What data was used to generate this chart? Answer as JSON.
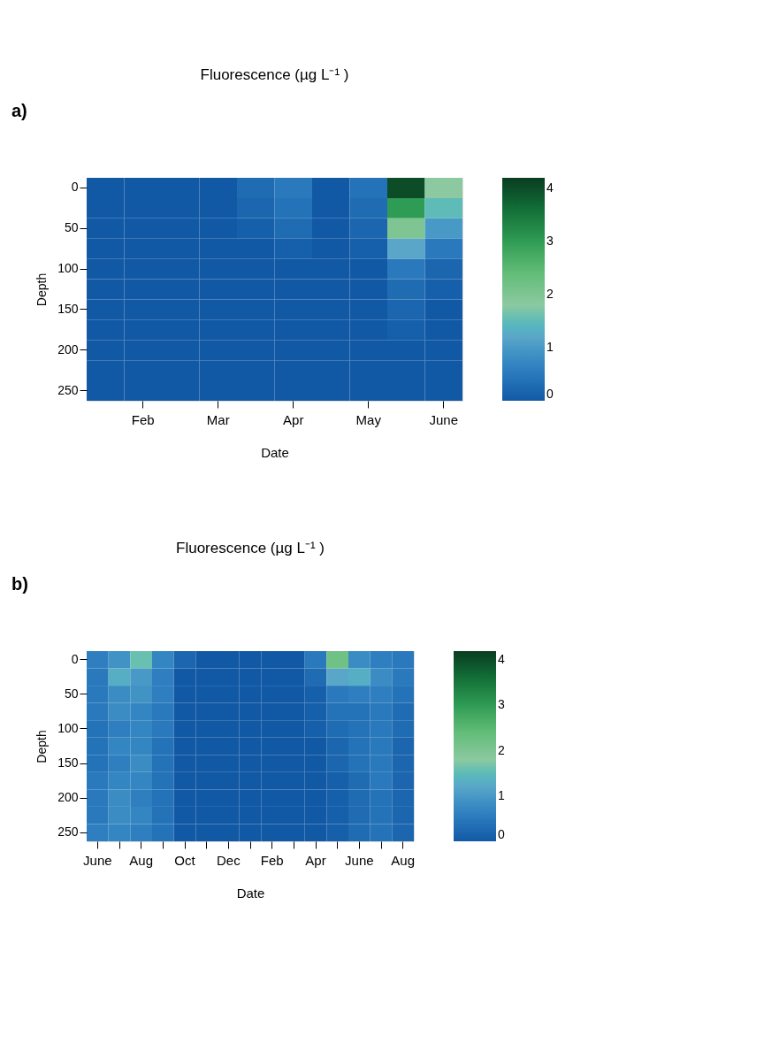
{
  "chart_data": [
    {
      "type": "heatmap",
      "title": "Fluorescence (µg L⁻¹ )",
      "annotations": [
        "a)"
      ],
      "xlabel": "Date",
      "ylabel": "Depth",
      "categories": [
        null,
        "Feb",
        null,
        "Mar",
        null,
        "Apr",
        null,
        "May",
        null,
        "June"
      ],
      "y_categories": [
        "0",
        null,
        "50",
        null,
        "100",
        null,
        "150",
        null,
        "200",
        null,
        "250"
      ],
      "cells": [
        [
          0,
          0,
          0,
          0,
          0.3,
          0.5,
          0,
          0.4,
          4.0,
          1.8
        ],
        [
          0,
          0,
          0,
          0,
          0.2,
          0.4,
          0,
          0.3,
          3.0,
          1.5
        ],
        [
          0,
          0,
          0,
          0,
          0.1,
          0.3,
          0,
          0.2,
          2.0,
          1.0
        ],
        [
          0,
          0,
          0,
          0,
          0,
          0.1,
          0,
          0.1,
          1.2,
          0.5
        ],
        [
          0,
          0,
          0,
          0,
          0,
          0,
          0,
          0,
          0.5,
          0.2
        ],
        [
          0,
          0,
          0,
          0,
          0,
          0,
          0,
          0,
          0.3,
          0.1
        ],
        [
          0,
          0,
          0,
          0,
          0,
          0,
          0,
          0,
          0.2,
          0
        ],
        [
          0,
          0,
          0,
          0,
          0,
          0,
          0,
          0,
          0.1,
          0
        ],
        [
          0,
          0,
          0,
          0,
          0,
          0,
          0,
          0,
          0,
          0
        ],
        [
          0,
          0,
          0,
          0,
          0,
          0,
          0,
          0,
          0,
          0
        ],
        [
          0,
          0,
          0,
          0,
          0,
          0,
          0,
          0,
          0,
          0
        ]
      ],
      "clim": [
        0,
        4.2
      ],
      "cticks": [
        0,
        1,
        2,
        3,
        4
      ]
    },
    {
      "type": "heatmap",
      "title": "Fluorescence (µg L⁻¹ )",
      "annotations": [
        "b)"
      ],
      "xlabel": "Date",
      "ylabel": "Depth",
      "categories": [
        "June",
        null,
        "Aug",
        null,
        "Oct",
        null,
        "Dec",
        null,
        "Feb",
        null,
        "Apr",
        null,
        "June",
        null,
        "Aug"
      ],
      "y_categories": [
        "0",
        null,
        "50",
        null,
        "100",
        null,
        "150",
        null,
        "200",
        null,
        "250"
      ],
      "cells": [
        [
          0.6,
          0.9,
          1.6,
          0.7,
          0.2,
          0,
          0,
          0,
          0,
          0,
          0.5,
          2.2,
          0.8,
          0.6,
          0.5
        ],
        [
          0.5,
          1.3,
          1.0,
          0.6,
          0,
          0,
          0,
          0,
          0,
          0,
          0.3,
          1.2,
          1.3,
          0.8,
          0.5
        ],
        [
          0.5,
          0.8,
          0.9,
          0.6,
          0,
          0,
          0,
          0,
          0,
          0,
          0.1,
          0.5,
          0.6,
          0.6,
          0.4
        ],
        [
          0.5,
          0.8,
          0.7,
          0.5,
          0,
          0,
          0,
          0,
          0,
          0,
          0.1,
          0.4,
          0.4,
          0.5,
          0.3
        ],
        [
          0.4,
          0.6,
          0.7,
          0.5,
          0,
          0,
          0,
          0,
          0,
          0,
          0.1,
          0.3,
          0.4,
          0.5,
          0.3
        ],
        [
          0.4,
          0.7,
          0.7,
          0.4,
          0,
          0,
          0,
          0,
          0,
          0,
          0,
          0.2,
          0.4,
          0.5,
          0.2
        ],
        [
          0.4,
          0.6,
          0.8,
          0.4,
          0,
          0,
          0,
          0,
          0,
          0,
          0,
          0.2,
          0.4,
          0.5,
          0.2
        ],
        [
          0.5,
          0.7,
          0.7,
          0.4,
          0,
          0,
          0,
          0,
          0,
          0,
          0,
          0.1,
          0.3,
          0.5,
          0.2
        ],
        [
          0.5,
          0.8,
          0.6,
          0.4,
          0,
          0,
          0,
          0,
          0,
          0,
          0,
          0.1,
          0.3,
          0.4,
          0.2
        ],
        [
          0.5,
          0.8,
          0.7,
          0.4,
          0,
          0,
          0,
          0,
          0,
          0,
          0,
          0.1,
          0.3,
          0.4,
          0.2
        ],
        [
          0.6,
          0.7,
          0.6,
          0.4,
          0,
          0,
          0,
          0,
          0,
          0,
          0,
          0.1,
          0.3,
          0.4,
          0.2
        ]
      ],
      "clim": [
        0,
        4.2
      ],
      "cticks": [
        0,
        1,
        2,
        3,
        4
      ]
    }
  ]
}
